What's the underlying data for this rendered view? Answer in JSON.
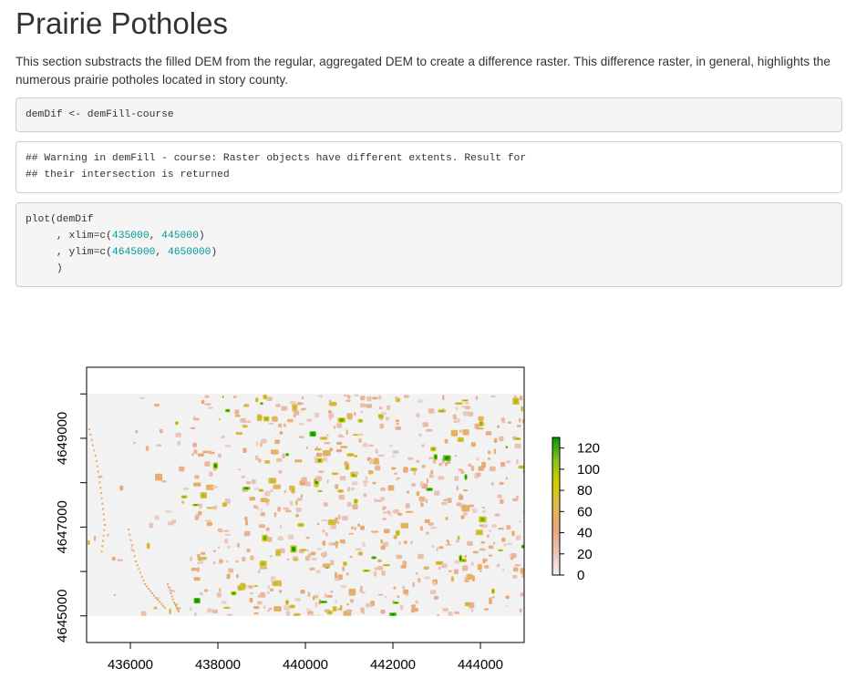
{
  "section": {
    "title": "Prairie Potholes",
    "description": "This section substracts the filled DEM from the regular, aggregated DEM to create a difference raster. This difference raster, in general, highlights the numerous prairie potholes located in story county."
  },
  "code_blocks": [
    {
      "kind": "source",
      "lines": [
        [
          {
            "t": "demDif <- demFill-course"
          }
        ]
      ]
    },
    {
      "kind": "output",
      "lines": [
        [
          {
            "t": "## Warning in demFill - course: Raster objects have different extents. Result for"
          }
        ],
        [
          {
            "t": "## their intersection is returned"
          }
        ]
      ]
    },
    {
      "kind": "source",
      "lines": [
        [
          {
            "t": "plot(demDif"
          }
        ],
        [
          {
            "t": "     , xlim=c("
          },
          {
            "t": "435000",
            "num": true
          },
          {
            "t": ", "
          },
          {
            "t": "445000",
            "num": true
          },
          {
            "t": ")"
          }
        ],
        [
          {
            "t": "     , ylim=c("
          },
          {
            "t": "4645000",
            "num": true
          },
          {
            "t": ", "
          },
          {
            "t": "4650000",
            "num": true
          },
          {
            "t": ")"
          }
        ],
        [
          {
            "t": "     )"
          }
        ]
      ]
    }
  ],
  "chart_data": {
    "type": "heatmap",
    "xlim": [
      435000,
      445000
    ],
    "ylim": [
      4644400,
      4650600
    ],
    "raster_extent": {
      "x": [
        435000,
        445000
      ],
      "y": [
        4645000,
        4650000
      ]
    },
    "x_ticks": [
      436000,
      438000,
      440000,
      442000,
      444000
    ],
    "y_ticks": [
      4645000,
      4647000,
      4649000
    ],
    "y_minor_ticks": [
      4646000,
      4648000,
      4650000
    ],
    "legend": {
      "ticks": [
        0,
        20,
        40,
        60,
        80,
        100,
        120
      ],
      "range": [
        0,
        130
      ],
      "colors": [
        "#f2f2f2",
        "#eac4b8",
        "#e8a87c",
        "#e3b94a",
        "#d5cc00",
        "#8dc21f",
        "#009900"
      ]
    },
    "background_color": "#f2f2f2",
    "potholes_description": "scattered pothole depressions of depth 0-130 concentrated in central and eastern county"
  }
}
